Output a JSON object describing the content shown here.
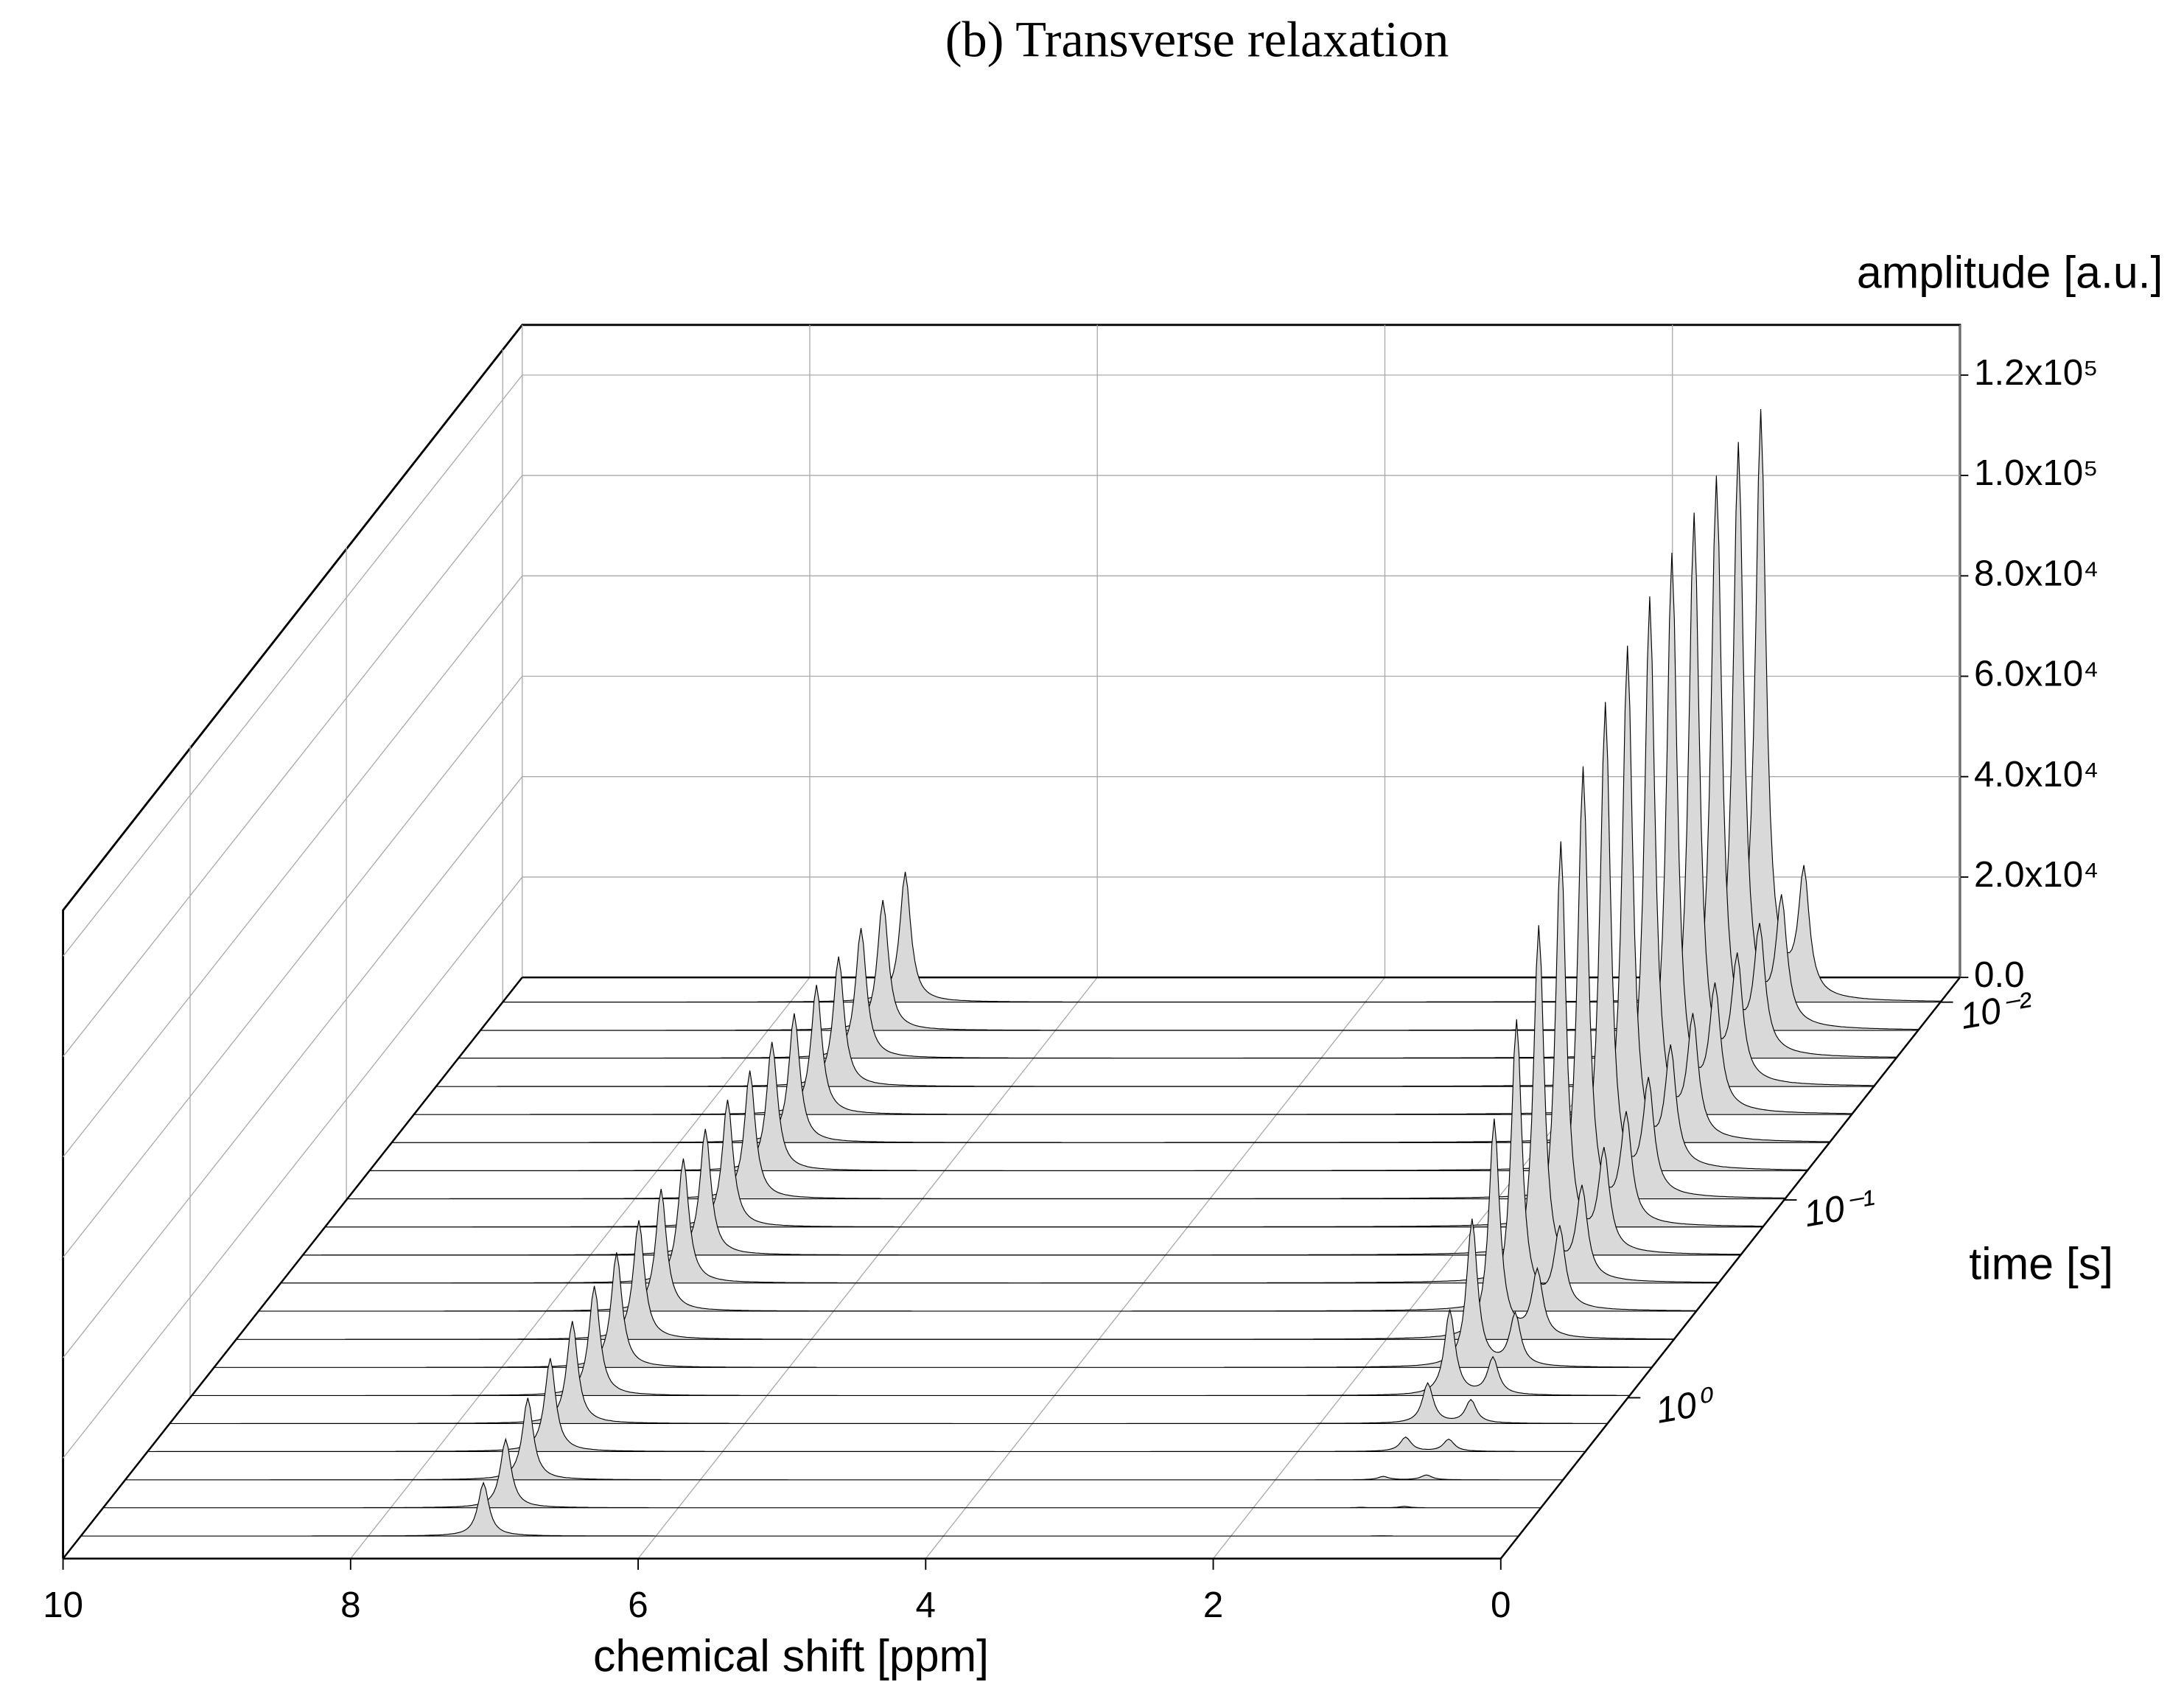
{
  "chart_data": {
    "type": "waterfall",
    "title": "(b) Transverse relaxation",
    "x_label": "chemical shift [ppm]",
    "y_label": "time [s]",
    "z_label": "amplitude [a.u.]",
    "xlim": [
      10,
      0
    ],
    "xticks": [
      10,
      8,
      6,
      4,
      2,
      0
    ],
    "ylim": [
      0.0075,
      6.5
    ],
    "ylog": true,
    "yticks": [
      {
        "value": 0.01,
        "label": "10⁻²"
      },
      {
        "value": 0.1,
        "label": "10⁻¹"
      },
      {
        "value": 1,
        "label": "10⁰"
      }
    ],
    "zlim": [
      0,
      130000
    ],
    "zticks": [
      {
        "value": 0,
        "label": "0.0"
      },
      {
        "value": 20000,
        "label": "2.0x10⁴"
      },
      {
        "value": 40000,
        "label": "4.0x10⁴"
      },
      {
        "value": 60000,
        "label": "6.0x10⁴"
      },
      {
        "value": 80000,
        "label": "8.0x10⁴"
      },
      {
        "value": 100000,
        "label": "1.0x10⁵"
      },
      {
        "value": 120000,
        "label": "1.2x10⁵"
      }
    ],
    "grid": true,
    "color": "#d9d9d9",
    "line_color": "#000000",
    "x": [
      7.2,
      1.25,
      0.95
    ],
    "series": [
      {
        "time": 0.01,
        "values": [
          25950,
          117600,
          24700
        ]
      },
      {
        "time": 0.0139,
        "values": [
          25940,
          116700,
          24570
        ]
      },
      {
        "time": 0.0192,
        "values": [
          25910,
          115500,
          24410
        ]
      },
      {
        "time": 0.0267,
        "values": [
          25880,
          113800,
          24180
        ]
      },
      {
        "time": 0.037,
        "values": [
          25830,
          111400,
          23870
        ]
      },
      {
        "time": 0.0513,
        "values": [
          25760,
          108300,
          23450
        ]
      },
      {
        "time": 0.0712,
        "values": [
          25670,
          104100,
          22870
        ]
      },
      {
        "time": 0.0987,
        "values": [
          25540,
          98500,
          22100
        ]
      },
      {
        "time": 0.137,
        "values": [
          25370,
          91300,
          21060
        ]
      },
      {
        "time": 0.19,
        "values": [
          25130,
          82000,
          19720
        ]
      },
      {
        "time": 0.263,
        "values": [
          24810,
          70900,
          18000
        ]
      },
      {
        "time": 0.365,
        "values": [
          24360,
          57800,
          15840
        ]
      },
      {
        "time": 0.507,
        "values": [
          23750,
          43700,
          13250
        ]
      },
      {
        "time": 0.703,
        "values": [
          22930,
          29400,
          10380
        ]
      },
      {
        "time": 0.975,
        "values": [
          21840,
          17000,
          7380
        ]
      },
      {
        "time": 1.35,
        "values": [
          20420,
          8000,
          4620
        ]
      },
      {
        "time": 1.87,
        "values": [
          18610,
          2850,
          2410
        ]
      },
      {
        "time": 2.6,
        "values": [
          16320,
          660,
          970
        ]
      },
      {
        "time": 3.6,
        "values": [
          13670,
          90,
          280
        ]
      },
      {
        "time": 5.0,
        "values": [
          10630,
          5,
          50
        ]
      }
    ]
  }
}
